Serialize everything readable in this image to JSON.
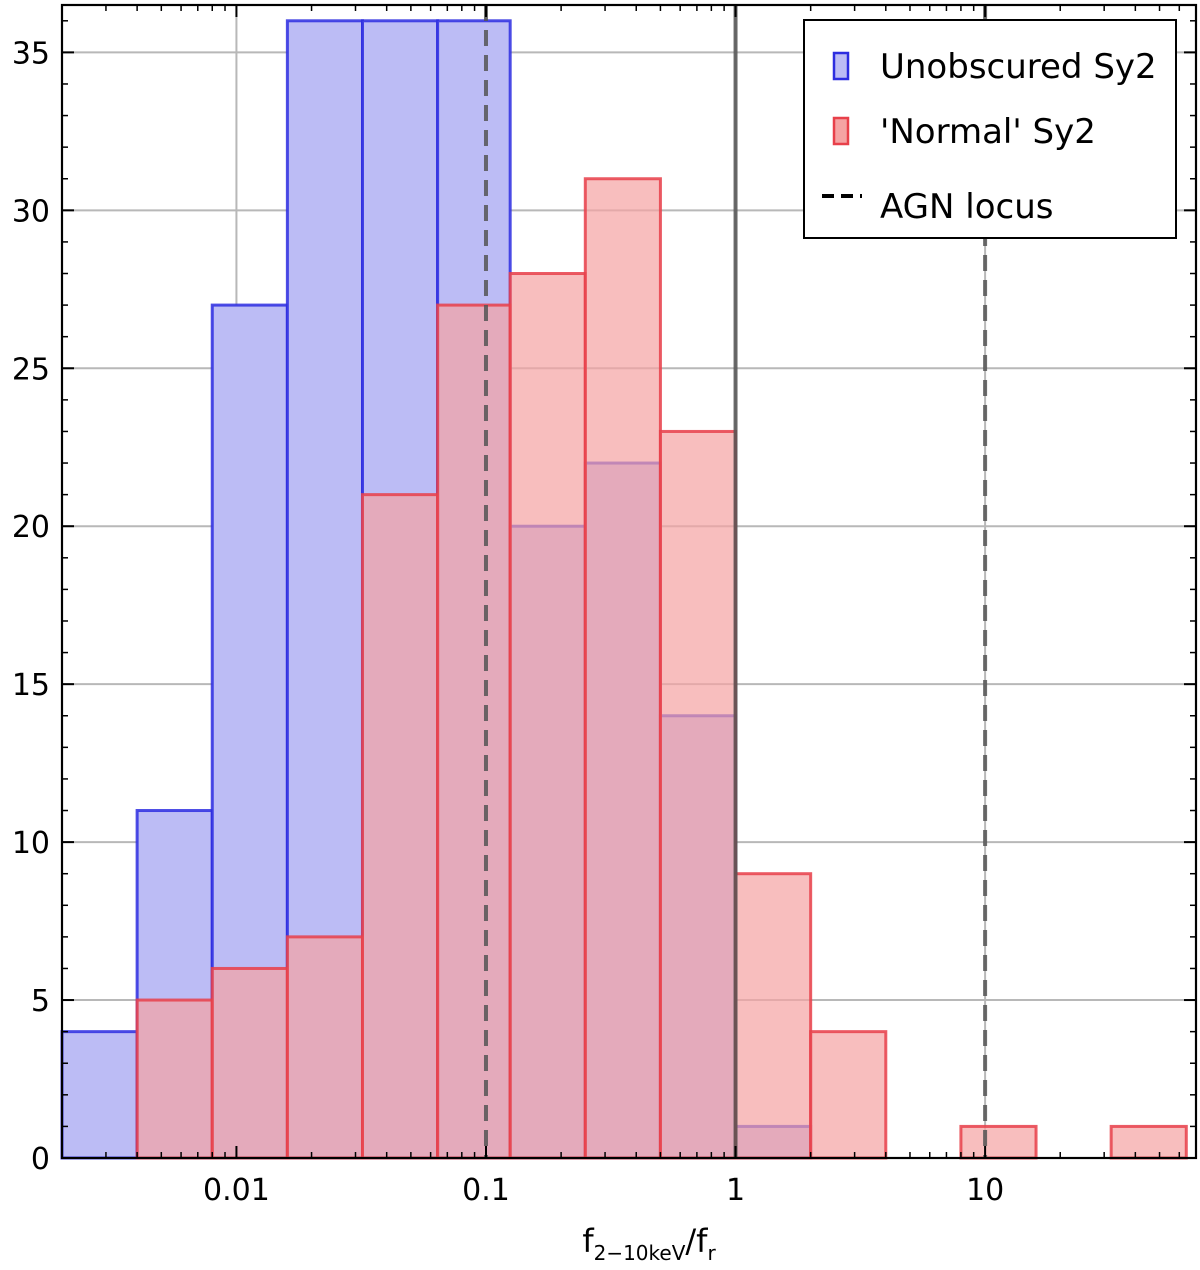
{
  "chart_data": {
    "type": "bar",
    "subtype": "histogram",
    "xscale": "log",
    "xlim": [
      0.002,
      70
    ],
    "ylim": [
      0,
      36.5
    ],
    "xticks": [
      {
        "value": 0.01,
        "label": "0.01"
      },
      {
        "value": 0.1,
        "label": "0.1"
      },
      {
        "value": 1,
        "label": "1"
      },
      {
        "value": 10,
        "label": "10"
      }
    ],
    "yticks": [
      0,
      5,
      10,
      15,
      20,
      25,
      30,
      35
    ],
    "ytick_labels": [
      "0",
      "5",
      "10",
      "15",
      "20",
      "25",
      "30",
      "35"
    ],
    "xlabel": {
      "main": "f",
      "sub1": "2−10keV",
      "slash": "/f",
      "sub2": "r"
    },
    "grid": true,
    "legend_position": "top-right",
    "series": [
      {
        "name": "Unobscured Sy2",
        "fill": "#bcbcf5",
        "stroke": "#2d2de0",
        "bins": [
          {
            "x0": 0.002,
            "x1": 0.004,
            "count": 4
          },
          {
            "x0": 0.004,
            "x1": 0.008,
            "count": 11
          },
          {
            "x0": 0.008,
            "x1": 0.016,
            "count": 27
          },
          {
            "x0": 0.016,
            "x1": 0.032,
            "count": 36
          },
          {
            "x0": 0.032,
            "x1": 0.064,
            "count": 36
          },
          {
            "x0": 0.064,
            "x1": 0.125,
            "count": 36
          },
          {
            "x0": 0.125,
            "x1": 0.25,
            "count": 20
          },
          {
            "x0": 0.25,
            "x1": 0.5,
            "count": 22
          },
          {
            "x0": 0.5,
            "x1": 1,
            "count": 14
          },
          {
            "x0": 1,
            "x1": 2,
            "count": 1
          }
        ]
      },
      {
        "name": "'Normal' Sy2",
        "fill": "#f5a3a3",
        "stroke": "#e8404a",
        "bins": [
          {
            "x0": 0.004,
            "x1": 0.008,
            "count": 5
          },
          {
            "x0": 0.008,
            "x1": 0.016,
            "count": 6
          },
          {
            "x0": 0.016,
            "x1": 0.032,
            "count": 7
          },
          {
            "x0": 0.032,
            "x1": 0.064,
            "count": 21
          },
          {
            "x0": 0.064,
            "x1": 0.125,
            "count": 27
          },
          {
            "x0": 0.125,
            "x1": 0.25,
            "count": 28
          },
          {
            "x0": 0.25,
            "x1": 0.5,
            "count": 31
          },
          {
            "x0": 0.5,
            "x1": 1,
            "count": 23
          },
          {
            "x0": 1,
            "x1": 2,
            "count": 9
          },
          {
            "x0": 2,
            "x1": 4,
            "count": 4
          },
          {
            "x0": 8,
            "x1": 16,
            "count": 1
          },
          {
            "x0": 32,
            "x1": 64,
            "count": 1
          }
        ]
      }
    ],
    "reference_lines": [
      {
        "x": 0.1,
        "style": "dashed",
        "label": "AGN locus"
      },
      {
        "x": 1,
        "style": "solid"
      },
      {
        "x": 10,
        "style": "dashed"
      }
    ],
    "legend": [
      {
        "label": "Unobscured Sy2",
        "kind": "patch",
        "fill": "#bcbcf5",
        "stroke": "#2d2de0"
      },
      {
        "label": "'Normal' Sy2",
        "kind": "patch",
        "fill": "#f5a3a3",
        "stroke": "#e8404a"
      },
      {
        "label": "AGN locus",
        "kind": "dashed-line"
      }
    ]
  }
}
